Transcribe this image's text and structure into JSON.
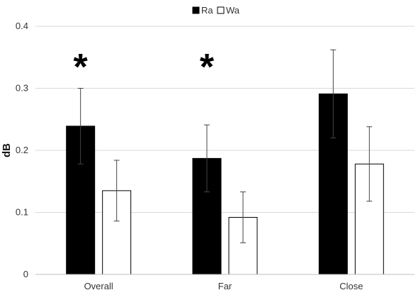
{
  "chart_data": {
    "type": "bar",
    "title": "",
    "xlabel": "",
    "ylabel": "dB",
    "ylim": [
      0,
      0.4
    ],
    "yticks": [
      "0",
      "0.1",
      "0.2",
      "0.3",
      "0.4"
    ],
    "grid": "horizontal",
    "legend_position": "top-center",
    "categories": [
      "Overall",
      "Far",
      "Close"
    ],
    "series": [
      {
        "name": "Ra",
        "values": [
          0.239,
          0.187,
          0.291
        ],
        "errors": [
          0.061,
          0.054,
          0.071
        ],
        "color": "#000000"
      },
      {
        "name": "Wa",
        "values": [
          0.135,
          0.092,
          0.178
        ],
        "errors": [
          0.049,
          0.041,
          0.06
        ],
        "color": "#ffffff"
      }
    ],
    "annotations": [
      "*",
      "*",
      ""
    ]
  }
}
